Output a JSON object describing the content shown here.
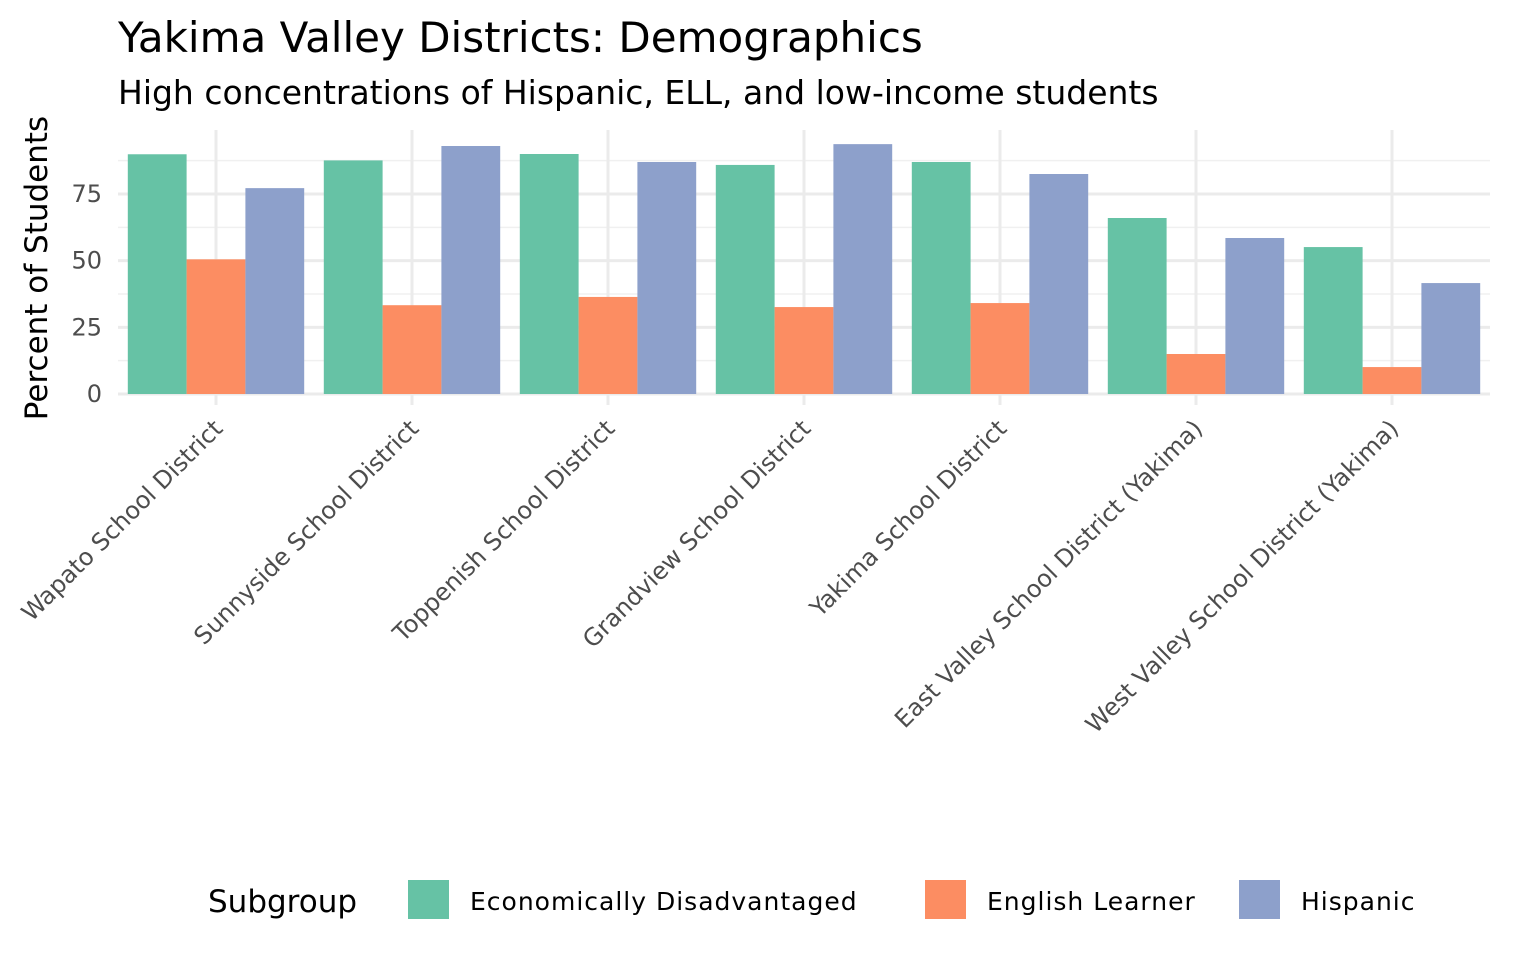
{
  "chart_data": {
    "type": "bar",
    "title": "Yakima Valley Districts: Demographics",
    "subtitle": "High concentrations of Hispanic, ELL, and low-income students",
    "xlabel": "",
    "ylabel": "Percent of Students",
    "ylim": [
      0,
      99
    ],
    "yticks": [
      0,
      25,
      50,
      75
    ],
    "grid": true,
    "legend": {
      "title": "Subgroup",
      "placement": "bottom"
    },
    "categories": [
      "Wapato School District",
      "Sunnyside School District",
      "Toppenish School District",
      "Grandview School District",
      "Yakima School District",
      "East Valley School District (Yakima)",
      "West Valley School District (Yakima)"
    ],
    "series": [
      {
        "name": "Economically Disadvantaged",
        "color": "#66c2a5",
        "values": [
          89.9,
          87.6,
          90.0,
          85.9,
          87.0,
          66.0,
          55.1
        ]
      },
      {
        "name": "English Learner",
        "color": "#fc8d62",
        "values": [
          50.5,
          33.3,
          36.4,
          32.6,
          34.1,
          15.0,
          10.1
        ]
      },
      {
        "name": "Hispanic",
        "color": "#8da0cb",
        "values": [
          77.2,
          93.0,
          87.0,
          93.7,
          82.5,
          58.5,
          41.6
        ]
      }
    ]
  }
}
